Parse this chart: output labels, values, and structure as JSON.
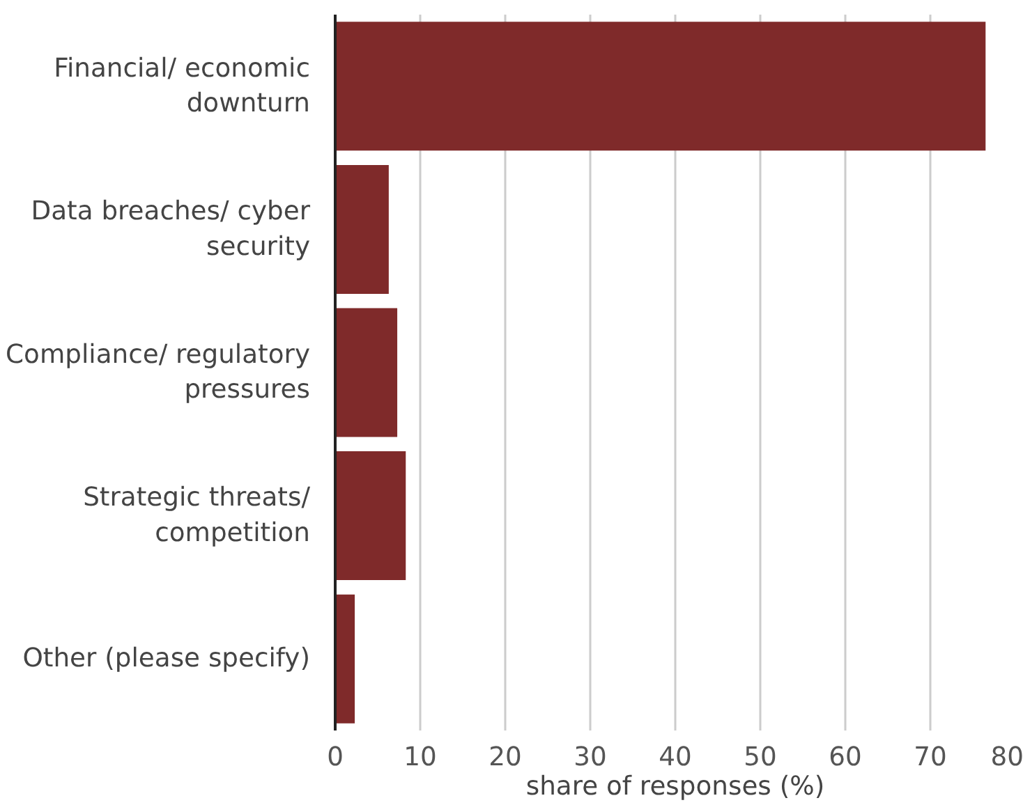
{
  "chart_data": {
    "type": "bar",
    "orientation": "horizontal",
    "xlabel": "share of responses (%)",
    "categories": [
      "Financial/ economic downturn",
      "Data breaches/ cyber security",
      "Compliance/ regulatory pressures",
      "Strategic threats/ competition",
      "Other (please specify)"
    ],
    "values": [
      76.5,
      6.3,
      7.3,
      8.3,
      2.3
    ],
    "color": "#7f2a2a",
    "xlim": [
      0,
      80
    ],
    "xticks": [
      0,
      10,
      20,
      30,
      40,
      50,
      60,
      70,
      80
    ],
    "grid": "x"
  }
}
